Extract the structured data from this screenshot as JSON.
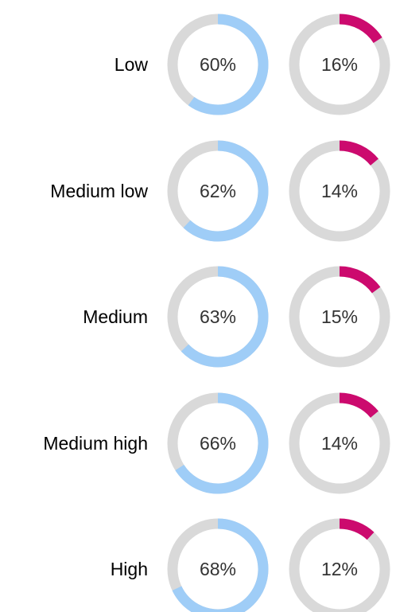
{
  "chart_data": {
    "type": "donut",
    "categories": [
      "Low",
      "Medium low",
      "Medium",
      "Medium high",
      "High"
    ],
    "series": [
      {
        "values": [
          60,
          62,
          63,
          66,
          68
        ],
        "color": "#9fcdf7"
      },
      {
        "values": [
          16,
          14,
          15,
          14,
          12
        ],
        "color": "#cc0a6e"
      }
    ],
    "value_suffix": "%",
    "track_color": "#d9d9d9",
    "max": 100
  }
}
